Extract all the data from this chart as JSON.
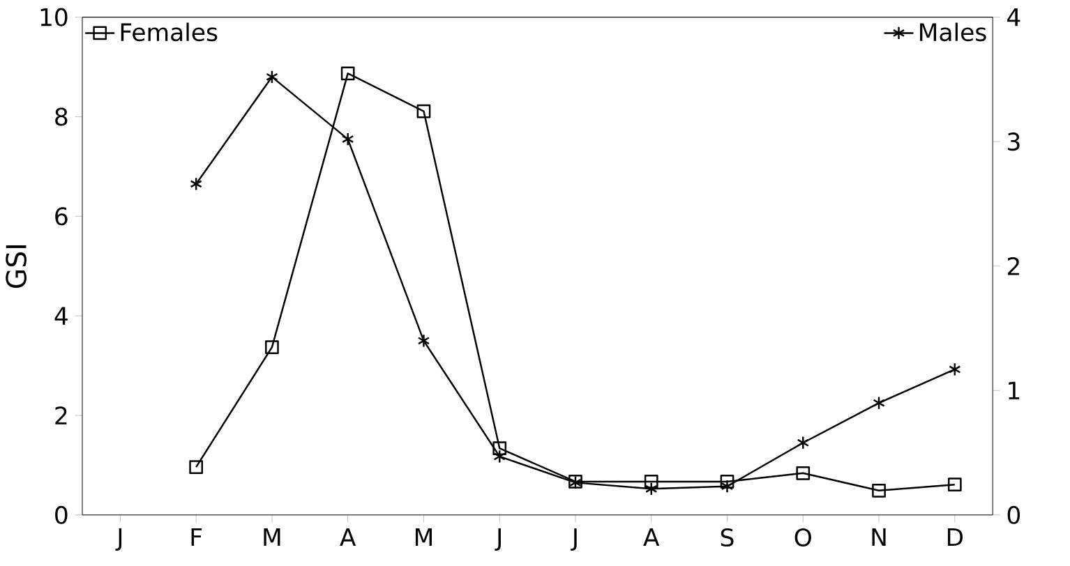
{
  "chart_data": {
    "type": "line",
    "ylabel": "GSI",
    "categories": [
      "J",
      "F",
      "M",
      "A",
      "M",
      "J",
      "J",
      "A",
      "S",
      "O",
      "N",
      "D"
    ],
    "ylim": [
      0,
      10
    ],
    "yticks": [
      0,
      2,
      4,
      6,
      8,
      10
    ],
    "y2lim": [
      0,
      4
    ],
    "y2ticks": [
      0,
      1,
      2,
      3,
      4
    ],
    "legend": "top",
    "grid": false,
    "series": [
      {
        "name": "Females",
        "color": "#000000",
        "marker": "square",
        "values": [
          null,
          0.96,
          3.37,
          8.87,
          8.11,
          1.34,
          0.67,
          0.67,
          0.67,
          0.84,
          0.49,
          0.61
        ]
      },
      {
        "name": "Males",
        "color": "#000000",
        "marker": "cross",
        "axis": "y2",
        "values": [
          null,
          2.66,
          3.52,
          3.02,
          1.4,
          0.47,
          0.26,
          0.21,
          0.23,
          0.58,
          0.9,
          1.17
        ]
      }
    ]
  }
}
